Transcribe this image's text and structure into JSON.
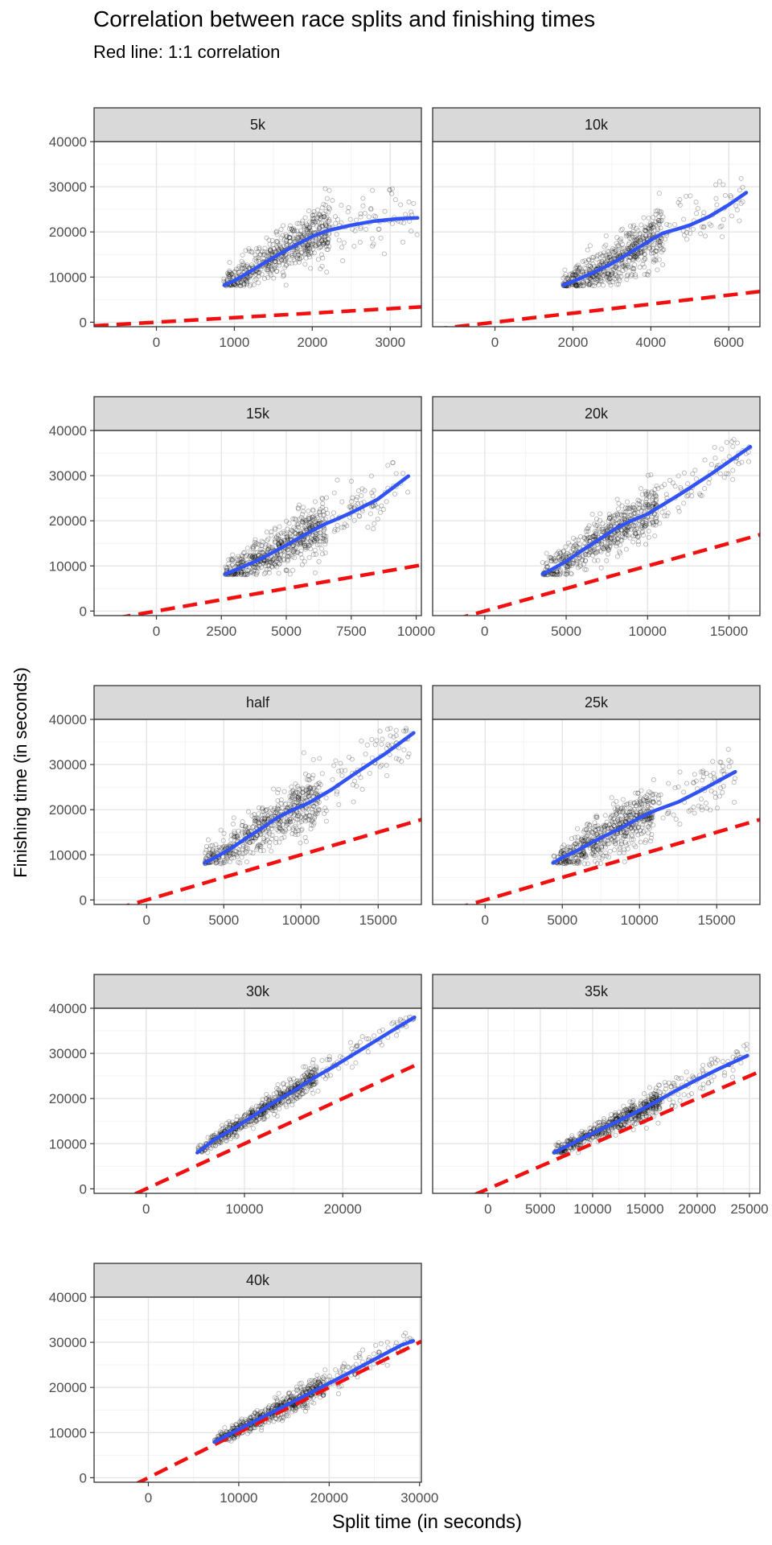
{
  "title": "Correlation between race splits and finishing times",
  "subtitle": "Red line: 1:1 correlation",
  "chart_data": {
    "type": "scatter",
    "xlabel": "Split time (in seconds)",
    "ylabel": "Finishing time (in seconds)",
    "ylim": [
      -1000,
      40000
    ],
    "y_ticks": [
      0,
      10000,
      20000,
      30000,
      40000
    ],
    "grid": true,
    "finish_range": [
      8000,
      38000
    ],
    "colors": {
      "points": "#000000",
      "smooth": "#3153F5",
      "identity": "#F01010",
      "strip": "#D9D9D9",
      "grid_major": "#E5E5E5",
      "grid_minor": "#F3F3F3"
    },
    "panels": [
      {
        "label": "5k",
        "xlim": [
          -800,
          3400
        ],
        "x_ticks": [
          0,
          1000,
          2000,
          3000
        ],
        "x_range": [
          860,
          3350
        ],
        "smooth": [
          [
            870,
            8200
          ],
          [
            1000,
            9200
          ],
          [
            1200,
            11200
          ],
          [
            1400,
            13300
          ],
          [
            1600,
            15300
          ],
          [
            1800,
            17200
          ],
          [
            2000,
            19000
          ],
          [
            2200,
            20300
          ],
          [
            2500,
            21500
          ],
          [
            2800,
            22400
          ],
          [
            3100,
            22900
          ],
          [
            3350,
            23100
          ]
        ]
      },
      {
        "label": "10k",
        "xlim": [
          -1600,
          6800
        ],
        "x_ticks": [
          0,
          2000,
          4000,
          6000
        ],
        "x_range": [
          1750,
          6400
        ],
        "smooth": [
          [
            1750,
            8200
          ],
          [
            2000,
            9000
          ],
          [
            2500,
            10900
          ],
          [
            3000,
            13000
          ],
          [
            3500,
            15600
          ],
          [
            4000,
            18200
          ],
          [
            4300,
            19700
          ],
          [
            4700,
            20700
          ],
          [
            5000,
            21500
          ],
          [
            5500,
            23400
          ],
          [
            6000,
            26000
          ],
          [
            6450,
            28700
          ]
        ]
      },
      {
        "label": "15k",
        "xlim": [
          -2400,
          10200
        ],
        "x_ticks": [
          0,
          2500,
          5000,
          7500,
          10000
        ],
        "x_range": [
          2650,
          9700
        ],
        "smooth": [
          [
            2650,
            8200
          ],
          [
            3000,
            9000
          ],
          [
            4000,
            11500
          ],
          [
            5000,
            14600
          ],
          [
            6000,
            17800
          ],
          [
            6500,
            19300
          ],
          [
            7000,
            20500
          ],
          [
            7500,
            21800
          ],
          [
            8500,
            24700
          ],
          [
            9700,
            29900
          ]
        ]
      },
      {
        "label": "20k",
        "xlim": [
          -3200,
          16900
        ],
        "x_ticks": [
          0,
          5000,
          10000,
          15000
        ],
        "x_range": [
          3550,
          16300
        ],
        "smooth": [
          [
            3550,
            8200
          ],
          [
            4000,
            9000
          ],
          [
            5000,
            11000
          ],
          [
            6000,
            13500
          ],
          [
            7000,
            15800
          ],
          [
            8000,
            18200
          ],
          [
            9000,
            20000
          ],
          [
            10000,
            21500
          ],
          [
            12000,
            25900
          ],
          [
            14000,
            30600
          ],
          [
            16300,
            36400
          ]
        ]
      },
      {
        "label": "half",
        "xlim": [
          -3400,
          17800
        ],
        "x_ticks": [
          0,
          5000,
          10000,
          15000
        ],
        "x_range": [
          3750,
          17300
        ],
        "smooth": [
          [
            3750,
            8200
          ],
          [
            4500,
            9500
          ],
          [
            5500,
            11500
          ],
          [
            6500,
            13800
          ],
          [
            7500,
            16000
          ],
          [
            8500,
            18300
          ],
          [
            9500,
            20000
          ],
          [
            10500,
            21500
          ],
          [
            12000,
            24500
          ],
          [
            13500,
            28000
          ],
          [
            15500,
            32500
          ],
          [
            17300,
            37000
          ]
        ]
      },
      {
        "label": "25k",
        "xlim": [
          -3400,
          17800
        ],
        "x_ticks": [
          0,
          5000,
          10000,
          15000
        ],
        "x_range": [
          4400,
          16200
        ],
        "smooth": [
          [
            4400,
            8200
          ],
          [
            5000,
            9400
          ],
          [
            6000,
            11000
          ],
          [
            7000,
            12900
          ],
          [
            8000,
            14600
          ],
          [
            9000,
            16300
          ],
          [
            10000,
            18200
          ],
          [
            11000,
            19800
          ],
          [
            12500,
            21700
          ],
          [
            14000,
            24300
          ],
          [
            16200,
            28400
          ]
        ]
      },
      {
        "label": "30k",
        "xlim": [
          -5300,
          28000
        ],
        "x_ticks": [
          0,
          10000,
          20000
        ],
        "x_range": [
          5200,
          27300
        ],
        "smooth": [
          [
            5200,
            8000
          ],
          [
            7000,
            11000
          ],
          [
            9000,
            13500
          ],
          [
            11000,
            16300
          ],
          [
            13000,
            19200
          ],
          [
            15000,
            21700
          ],
          [
            17000,
            24500
          ],
          [
            19000,
            27000
          ],
          [
            22000,
            31000
          ],
          [
            25000,
            35000
          ],
          [
            27300,
            38000
          ]
        ]
      },
      {
        "label": "35k",
        "xlim": [
          -5300,
          26000
        ],
        "x_ticks": [
          0,
          5000,
          10000,
          15000,
          20000,
          25000
        ],
        "x_range": [
          6300,
          24800
        ],
        "smooth": [
          [
            6300,
            8000
          ],
          [
            8000,
            10000
          ],
          [
            10000,
            12300
          ],
          [
            12000,
            14500
          ],
          [
            14000,
            16800
          ],
          [
            16000,
            19200
          ],
          [
            18000,
            21800
          ],
          [
            20000,
            24200
          ],
          [
            22000,
            26500
          ],
          [
            24800,
            29500
          ]
        ]
      },
      {
        "label": "40k",
        "xlim": [
          -6000,
          30200
        ],
        "x_ticks": [
          0,
          10000,
          20000,
          30000
        ],
        "x_range": [
          7300,
          29300
        ],
        "smooth": [
          [
            7300,
            7900
          ],
          [
            10000,
            10700
          ],
          [
            13000,
            13800
          ],
          [
            16000,
            16800
          ],
          [
            19000,
            19900
          ],
          [
            22000,
            23000
          ],
          [
            25000,
            26200
          ],
          [
            28000,
            29400
          ],
          [
            29300,
            30300
          ]
        ]
      }
    ]
  }
}
